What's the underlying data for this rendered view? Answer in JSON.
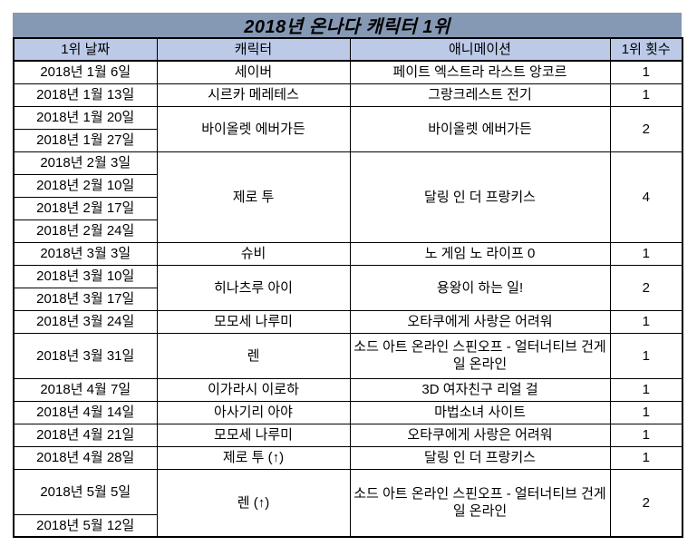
{
  "title": "2018년 온나다 캐릭터 1위",
  "colors": {
    "title_background": "#8598B4",
    "header_background": "#BCCAE8",
    "border": "#000000",
    "row_background": "#FFFFFF",
    "text": "#000000"
  },
  "table": {
    "headers": [
      "1위 날짜",
      "캐릭터",
      "애니메이션",
      "1위 횟수"
    ],
    "groups": [
      {
        "dates": [
          "2018년 1월 6일"
        ],
        "character": "세이버",
        "animation": "페이트 엑스트라 라스트 앙코르",
        "count": "1"
      },
      {
        "dates": [
          "2018년 1월 13일"
        ],
        "character": "시르카 메레테스",
        "animation": "그랑크레스트 전기",
        "count": "1"
      },
      {
        "dates": [
          "2018년 1월 20일",
          "2018년 1월 27일"
        ],
        "character": "바이올렛 에버가든",
        "animation": "바이올렛 에버가든",
        "count": "2"
      },
      {
        "dates": [
          "2018년 2월 3일",
          "2018년 2월 10일",
          "2018년 2월 17일",
          "2018년 2월 24일"
        ],
        "character": "제로 투",
        "animation": "달링 인 더 프랑키스",
        "count": "4"
      },
      {
        "dates": [
          "2018년 3월 3일"
        ],
        "character": "슈비",
        "animation": "노 게임 노 라이프 0",
        "count": "1"
      },
      {
        "dates": [
          "2018년 3월 10일",
          "2018년 3월 17일"
        ],
        "character": "히나츠루 아이",
        "animation": "용왕이 하는 일!",
        "count": "2"
      },
      {
        "dates": [
          "2018년 3월 24일"
        ],
        "character": "모모세 나루미",
        "animation": "오타쿠에게 사랑은 어려워",
        "count": "1"
      },
      {
        "dates": [
          "2018년 3월 31일"
        ],
        "character": "렌",
        "animation": "소드 아트 온라인 스핀오프 - 얼터너티브 건게일 온라인",
        "count": "1",
        "double_height": true
      },
      {
        "dates": [
          "2018년 4월 7일"
        ],
        "character": "이가라시 이로하",
        "animation": "3D 여자친구 리얼 걸",
        "count": "1"
      },
      {
        "dates": [
          "2018년 4월 14일"
        ],
        "character": "아사기리 아야",
        "animation": "마법소녀 사이트",
        "count": "1"
      },
      {
        "dates": [
          "2018년 4월 21일"
        ],
        "character": "모모세 나루미",
        "animation": "오타쿠에게 사랑은 어려워",
        "count": "1"
      },
      {
        "dates": [
          "2018년 4월 28일"
        ],
        "character": "제로 투 (↑)",
        "animation": "달링 인 더 프랑키스",
        "count": "1"
      },
      {
        "dates": [
          "2018년 5월 5일",
          "2018년 5월 12일"
        ],
        "character": "렌 (↑)",
        "animation": "소드 아트 온라인 스핀오프 - 얼터너티브 건게일 온라인",
        "count": "2",
        "double_height": true
      }
    ]
  }
}
